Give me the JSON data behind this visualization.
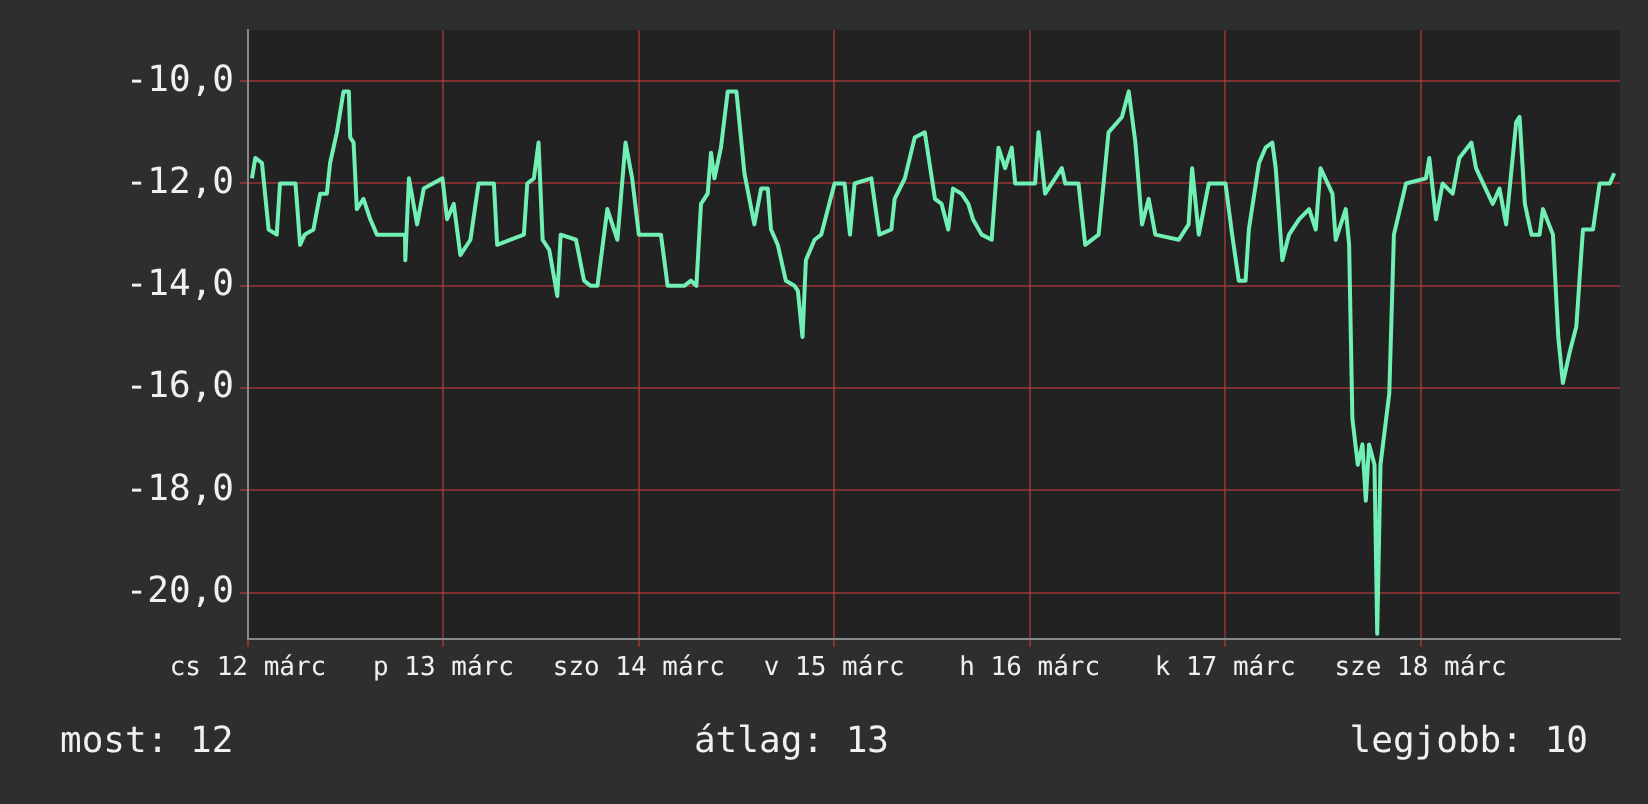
{
  "chart_data": {
    "type": "line",
    "line_style": "solid",
    "marker": "none",
    "grid": true,
    "legend": false,
    "xlim": [
      "--03-12T00:00",
      "--03-19T00:30"
    ],
    "xticks": [
      {
        "value": "--03-12",
        "label": "cs 12 márc"
      },
      {
        "value": "--03-13",
        "label": "p 13 márc"
      },
      {
        "value": "--03-14",
        "label": "szo 14 márc"
      },
      {
        "value": "--03-15",
        "label": "v 15 márc"
      },
      {
        "value": "--03-16",
        "label": "h 16 márc"
      },
      {
        "value": "--03-17",
        "label": "k 17 márc"
      },
      {
        "value": "--03-18",
        "label": "sze 18 márc"
      }
    ],
    "ylim": [
      -20.9,
      -9.0
    ],
    "yticks": [
      {
        "value": -20,
        "label": "-20,0"
      },
      {
        "value": -18,
        "label": "-18,0"
      },
      {
        "value": -16,
        "label": "-16,0"
      },
      {
        "value": -14,
        "label": "-14,0"
      },
      {
        "value": -12,
        "label": "-12,0"
      },
      {
        "value": -10,
        "label": "-10,0"
      }
    ],
    "annotations": [
      "most: 12",
      "átlag: 13",
      "legjobb: 10"
    ],
    "series": [
      {
        "color": "#70f0b4",
        "x": [
          "--03-12T00:29",
          "--03-12T00:54",
          "--03-12T01:43",
          "--03-12T02:32",
          "--03-12T03:32",
          "--03-12T03:56",
          "--03-12T05:50",
          "--03-12T06:24",
          "--03-12T06:58",
          "--03-12T08:02",
          "--03-12T08:52",
          "--03-12T09:41",
          "--03-12T10:05",
          "--03-12T10:55",
          "--03-12T11:44",
          "--03-12T12:23",
          "--03-12T12:33",
          "--03-12T12:58",
          "--03-12T13:22",
          "--03-12T14:11",
          "--03-12T15:01",
          "--03-12T15:50",
          "--03-12T19:17",
          "--03-12T19:19",
          "--03-12T19:46",
          "--03-12T20:46",
          "--03-12T21:35",
          "--03-12T23:53",
          "--03-13T00:27",
          "--03-13T01:16",
          "--03-13T02:05",
          "--03-13T03:19",
          "--03-13T04:19",
          "--03-13T06:12",
          "--03-13T06:36",
          "--03-13T09:53",
          "--03-13T10:18",
          "--03-13T11:07",
          "--03-13T11:41",
          "--03-13T12:11",
          "--03-13T13:00",
          "--03-13T13:59",
          "--03-13T14:24",
          "--03-13T16:17",
          "--03-13T17:16",
          "--03-13T18:05",
          "--03-13T18:55",
          "--03-13T20:08",
          "--03-13T21:22",
          "--03-13T22:22",
          "--03-13T23:11",
          "--03-14T00:00",
          "--03-14T02:43",
          "--03-14T03:32",
          "--03-14T05:35",
          "--03-14T06:24",
          "--03-14T07:04",
          "--03-14T07:38",
          "--03-14T08:27",
          "--03-14T08:52",
          "--03-14T09:17",
          "--03-14T10:05",
          "--03-14T10:55",
          "--03-14T11:59",
          "--03-14T12:58",
          "--03-14T14:11",
          "--03-14T15:01",
          "--03-14T15:50",
          "--03-14T16:14",
          "--03-14T17:04",
          "--03-14T18:03",
          "--03-14T19:07",
          "--03-14T19:32",
          "--03-14T20:06",
          "--03-14T20:31",
          "--03-14T21:35",
          "--03-14T22:24",
          "--03-15T00:02",
          "--03-15T01:16",
          "--03-15T01:56",
          "--03-15T02:30",
          "--03-15T04:33",
          "--03-15T05:32",
          "--03-15T07:01",
          "--03-15T07:25",
          "--03-15T08:40",
          "--03-15T09:53",
          "--03-15T11:07",
          "--03-15T12:22",
          "--03-15T13:11",
          "--03-15T14:00",
          "--03-15T14:35",
          "--03-15T15:38",
          "--03-15T16:28",
          "--03-15T17:02",
          "--03-15T18:06",
          "--03-15T19:20",
          "--03-15T20:10",
          "--03-15T20:59",
          "--03-15T21:48",
          "--03-15T22:13",
          "--03-16T00:40",
          "--03-16T01:05",
          "--03-16T01:54",
          "--03-16T03:57",
          "--03-16T04:22",
          "--03-16T06:00",
          "--03-16T06:49",
          "--03-16T08:28",
          "--03-16T09:41",
          "--03-16T11:20",
          "--03-16T12:10",
          "--03-16T12:59",
          "--03-16T13:48",
          "--03-16T14:37",
          "--03-16T15:26",
          "--03-16T18:19",
          "--03-16T19:31",
          "--03-16T19:57",
          "--03-16T20:46",
          "--03-16T22:00",
          "--03-17T00:03",
          "--03-17T00:52",
          "--03-17T01:41",
          "--03-17T02:31",
          "--03-17T02:55",
          "--03-17T04:10",
          "--03-17T04:58",
          "--03-17T05:48",
          "--03-17T06:13",
          "--03-17T07:02",
          "--03-17T07:51",
          "--03-17T09:05",
          "--03-17T10:19",
          "--03-17T11:08",
          "--03-17T11:43",
          "--03-17T13:11",
          "--03-17T13:35",
          "--03-17T14:49",
          "--03-17T15:14",
          "--03-17T15:38",
          "--03-17T16:18",
          "--03-17T16:52",
          "--03-17T17:17",
          "--03-17T17:41",
          "--03-17T18:21",
          "--03-17T18:41",
          "--03-17T19:05",
          "--03-17T20:10",
          "--03-17T20:44",
          "--03-17T22:13",
          "--03-18T00:40",
          "--03-18T01:05",
          "--03-18T01:54",
          "--03-18T02:43",
          "--03-18T03:57",
          "--03-18T04:46",
          "--03-18T06:15",
          "--03-18T06:49",
          "--03-18T08:52",
          "--03-18T09:42",
          "--03-18T10:31",
          "--03-18T11:45",
          "--03-18T12:10",
          "--03-18T12:49",
          "--03-18T13:38",
          "--03-18T14:37",
          "--03-18T15:02",
          "--03-18T16:16",
          "--03-18T16:55",
          "--03-18T17:29",
          "--03-18T18:19",
          "--03-18T19:08",
          "--03-18T19:57",
          "--03-18T21:11",
          "--03-18T22:00",
          "--03-18T23:14",
          "--03-18T23:48"
        ],
        "values": [
          -11.9,
          -11.5,
          -11.6,
          -12.9,
          -13.0,
          -12.0,
          -12.0,
          -13.2,
          -13.0,
          -12.9,
          -12.2,
          -12.2,
          -11.6,
          -11.0,
          -10.2,
          -10.2,
          -11.1,
          -11.2,
          -12.5,
          -12.3,
          -12.7,
          -13.0,
          -13.0,
          -13.5,
          -11.9,
          -12.8,
          -12.1,
          -11.9,
          -12.7,
          -12.4,
          -13.4,
          -13.1,
          -12.0,
          -12.0,
          -13.2,
          -13.0,
          -12.0,
          -11.9,
          -11.2,
          -13.1,
          -13.3,
          -14.2,
          -13.0,
          -13.1,
          -13.9,
          -14.0,
          -14.0,
          -12.5,
          -13.1,
          -11.2,
          -11.9,
          -13.0,
          -13.0,
          -14.0,
          -14.0,
          -13.9,
          -14.0,
          -12.4,
          -12.2,
          -11.4,
          -11.9,
          -11.3,
          -10.2,
          -10.2,
          -11.8,
          -12.8,
          -12.1,
          -12.1,
          -12.9,
          -13.2,
          -13.9,
          -14.0,
          -14.1,
          -15.0,
          -13.5,
          -13.1,
          -13.0,
          -12.0,
          -12.0,
          -13.0,
          -12.0,
          -11.9,
          -13.0,
          -12.9,
          -12.3,
          -11.9,
          -11.1,
          -11.0,
          -12.3,
          -12.4,
          -12.9,
          -12.1,
          -12.2,
          -12.4,
          -12.7,
          -13.0,
          -13.1,
          -11.3,
          -11.7,
          -11.3,
          -12.0,
          -12.0,
          -11.0,
          -12.2,
          -11.7,
          -12.0,
          -12.0,
          -13.2,
          -13.0,
          -11.0,
          -10.7,
          -10.2,
          -11.2,
          -12.8,
          -12.3,
          -13.0,
          -13.1,
          -12.8,
          -11.7,
          -13.0,
          -12.0,
          -12.0,
          -13.0,
          -13.9,
          -13.9,
          -12.9,
          -11.6,
          -11.3,
          -11.2,
          -11.7,
          -13.5,
          -13.0,
          -12.7,
          -12.5,
          -12.9,
          -11.7,
          -12.2,
          -13.1,
          -12.5,
          -13.2,
          -16.6,
          -17.5,
          -17.1,
          -18.2,
          -17.1,
          -17.5,
          -20.8,
          -17.5,
          -16.1,
          -13.0,
          -12.0,
          -11.9,
          -11.5,
          -12.7,
          -12.0,
          -12.2,
          -11.5,
          -11.2,
          -11.7,
          -12.4,
          -12.1,
          -12.8,
          -10.8,
          -10.7,
          -12.4,
          -13.0,
          -13.0,
          -12.5,
          -13.0,
          -15.0,
          -15.9,
          -15.3,
          -14.8,
          -12.9,
          -12.9,
          -12.0,
          -12.0,
          -11.8
        ]
      }
    ]
  }
}
